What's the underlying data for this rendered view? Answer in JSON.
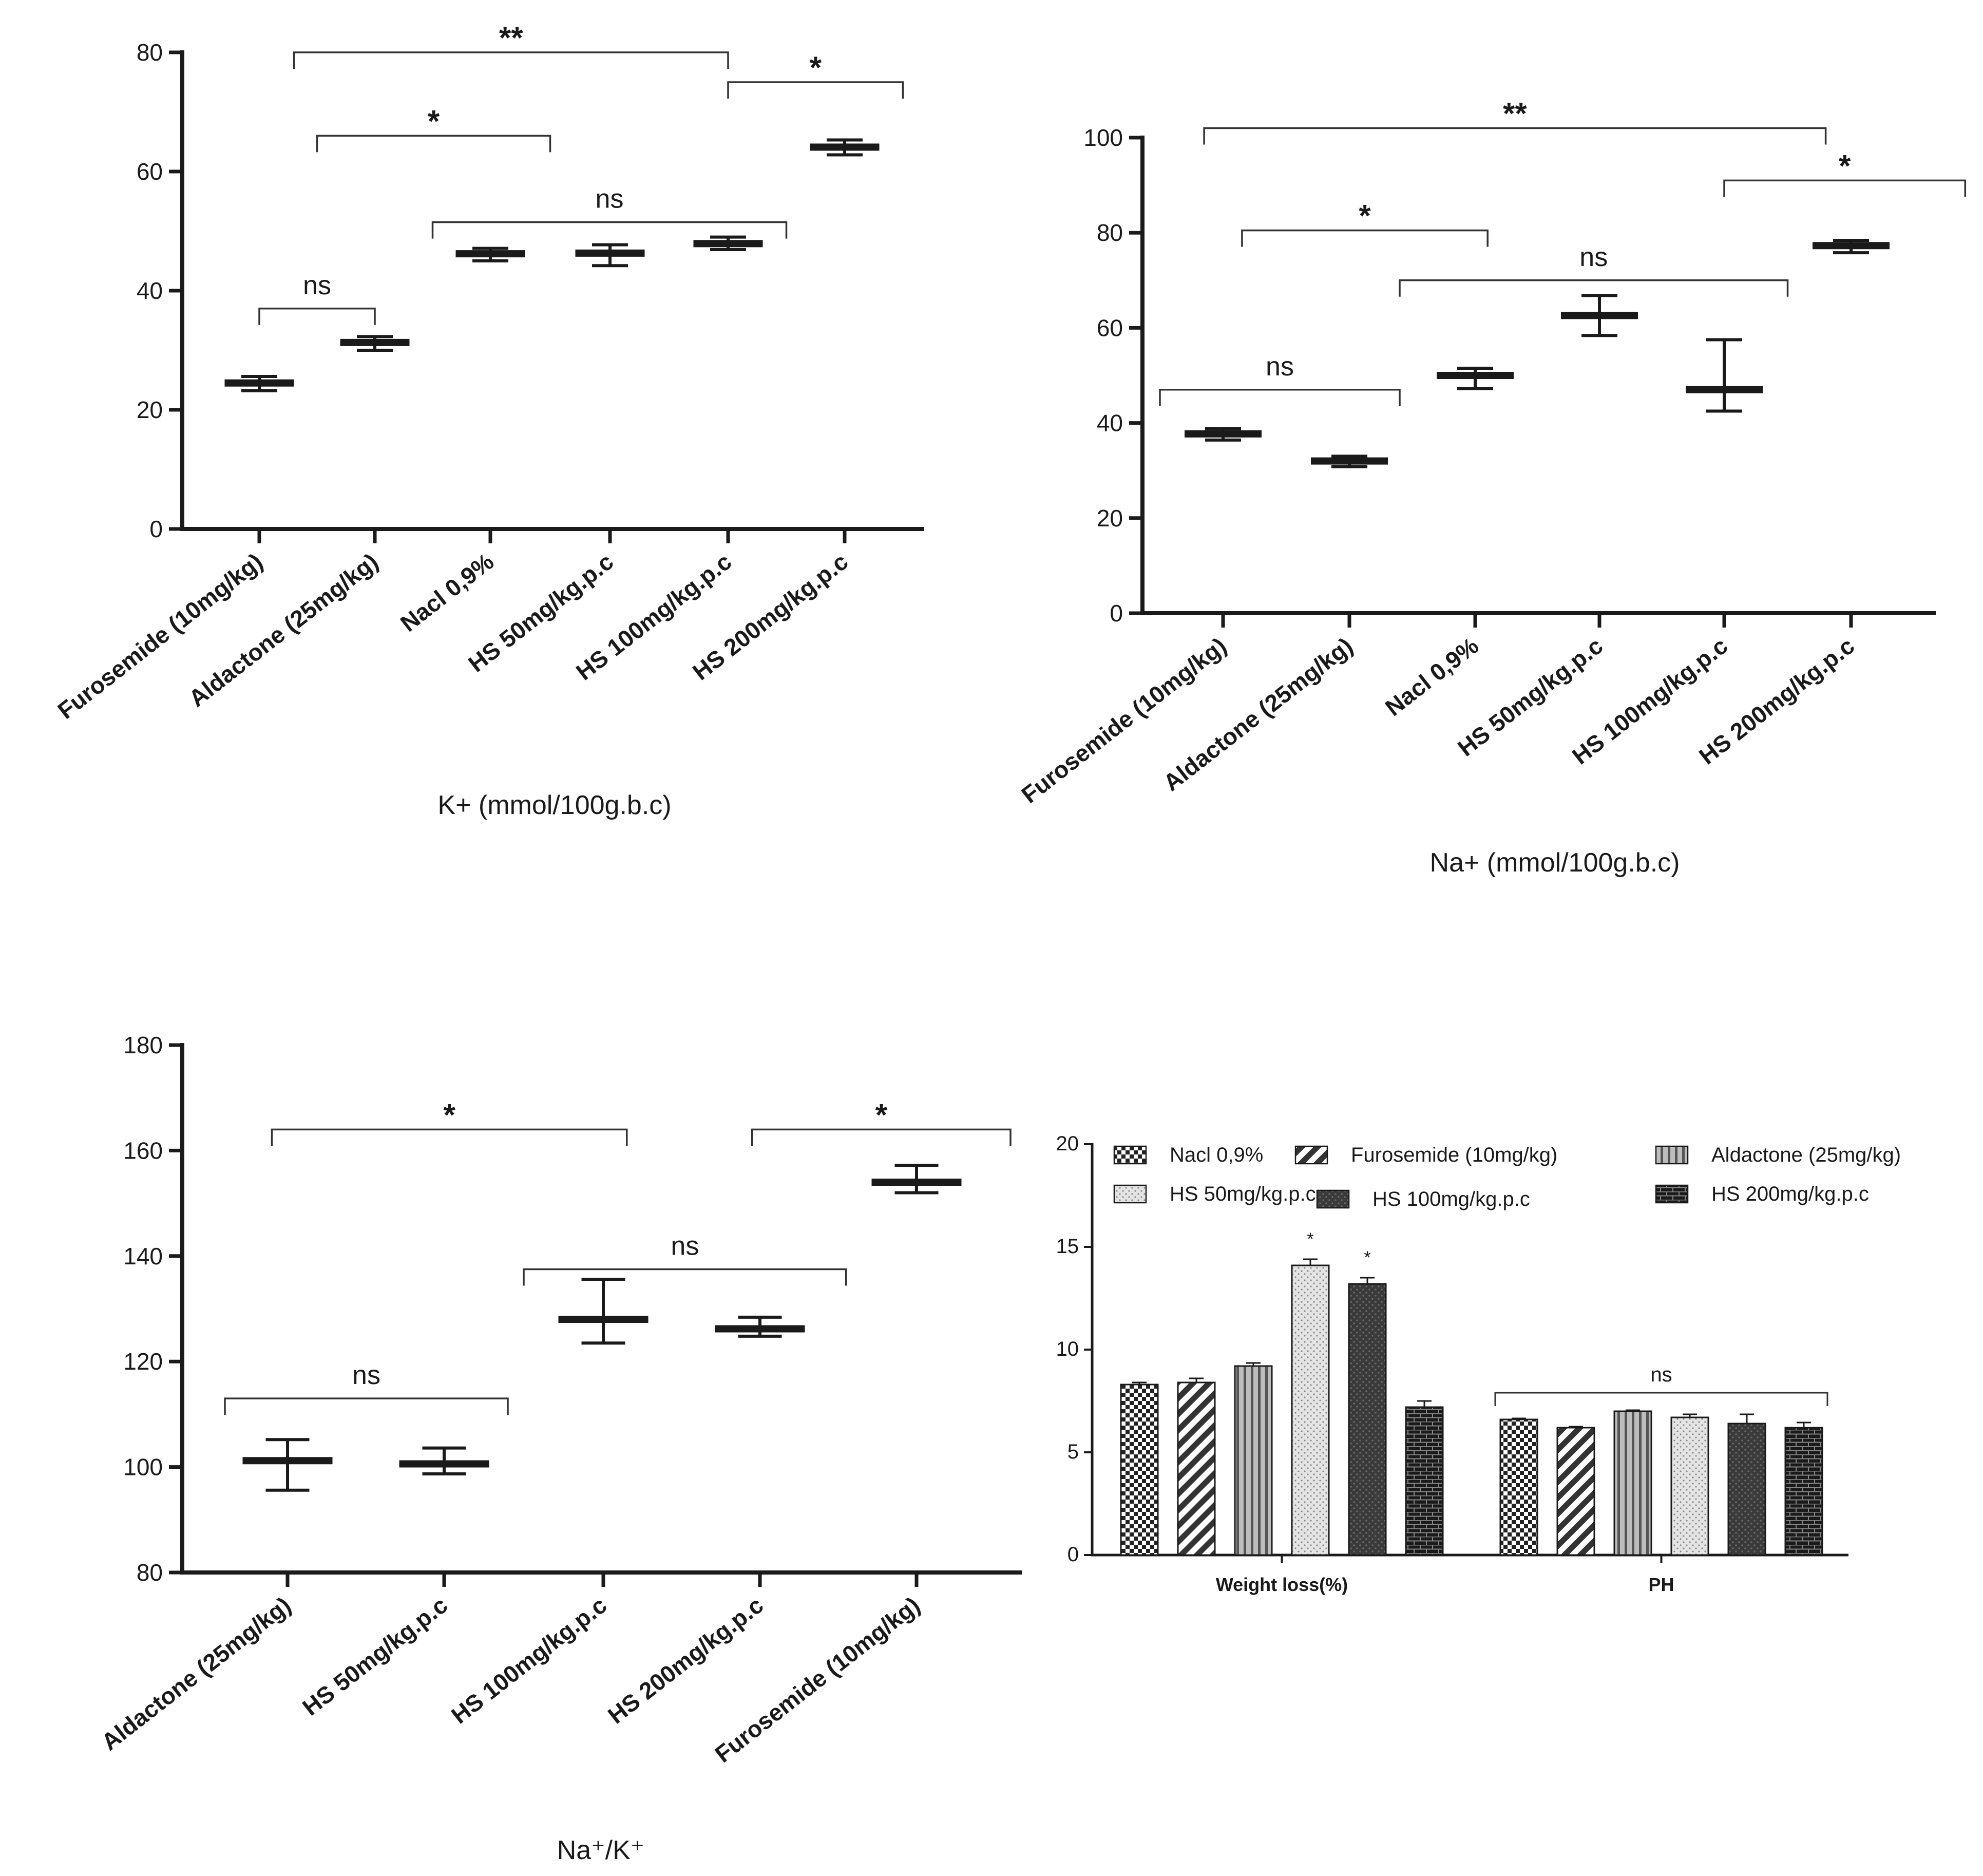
{
  "chart_data": [
    {
      "id": "k",
      "type": "scatter",
      "title": "",
      "xlabel": "K+ (mmol/100g.b.c)",
      "ylabel": "",
      "ylim": [
        0,
        80
      ],
      "yticks": [
        0,
        20,
        40,
        60,
        80
      ],
      "categories": [
        "Furosemide (10mg/kg)",
        "Aldactone (25mg/kg)",
        "Nacl 0,9%",
        "HS 50mg/kg.p.c",
        "HS 100mg/kg.p.c",
        "HS 200mg/kg.p.c"
      ],
      "series": [
        {
          "name": "K+",
          "values": [
            24.5,
            31.3,
            46.2,
            46.3,
            47.9,
            64.1
          ],
          "err_low": [
            23.2,
            30.0,
            45.0,
            44.2,
            46.9,
            62.8
          ],
          "err_high": [
            25.6,
            32.3,
            47.1,
            47.7,
            49.0,
            65.3
          ]
        }
      ],
      "brackets": [
        {
          "from": 0,
          "to": 1,
          "y": 37,
          "label": "ns"
        },
        {
          "from": 0.5,
          "to": 2.5,
          "y": 66,
          "label": "*"
        },
        {
          "from": 1.5,
          "to": 4.5,
          "y": 51.5,
          "label": "ns"
        },
        {
          "from": 0.3,
          "to": 4,
          "y": 80,
          "label": "**"
        },
        {
          "from": 4,
          "to": 5.5,
          "y": 75,
          "label": "*"
        }
      ]
    },
    {
      "id": "na",
      "type": "scatter",
      "title": "",
      "xlabel": "Na+ (mmol/100g.b.c)",
      "ylabel": "",
      "ylim": [
        0,
        100
      ],
      "yticks": [
        0,
        20,
        40,
        60,
        80,
        100
      ],
      "categories": [
        "Furosemide (10mg/kg)",
        "Aldactone (25mg/kg)",
        "Nacl 0,9%",
        "HS 50mg/kg.p.c",
        "HS 100mg/kg.p.c",
        "HS 200mg/kg.p.c"
      ],
      "series": [
        {
          "name": "Na+",
          "values": [
            37.7,
            32.0,
            50.0,
            62.6,
            47.0,
            77.3
          ],
          "err_low": [
            36.4,
            30.8,
            47.2,
            58.4,
            42.5,
            75.8
          ],
          "err_high": [
            38.8,
            33.0,
            51.5,
            66.8,
            57.5,
            78.4
          ]
        }
      ],
      "brackets": [
        {
          "from": -0.5,
          "to": 1.4,
          "y": 47,
          "label": "ns"
        },
        {
          "from": 0.15,
          "to": 2.1,
          "y": 80.5,
          "label": "*"
        },
        {
          "from": 1.4,
          "to": 4.5,
          "y": 70,
          "label": "ns"
        },
        {
          "from": -0.15,
          "to": 4.8,
          "y": 102,
          "label": "**"
        },
        {
          "from": 4,
          "to": 5.9,
          "y": 91,
          "label": "*"
        }
      ]
    },
    {
      "id": "ratio",
      "type": "scatter",
      "title": "",
      "xlabel": "Na⁺/K⁺",
      "ylabel": "",
      "ylim": [
        80,
        180
      ],
      "yticks": [
        80,
        100,
        120,
        140,
        160,
        180
      ],
      "categories": [
        "Aldactone (25mg/kg)",
        "HS 50mg/kg.p.c",
        "HS 100mg/kg.p.c",
        "HS 200mg/kg.p.c",
        "Furosemide (10mg/kg)"
      ],
      "series": [
        {
          "name": "Na+/K+",
          "values": [
            101.2,
            100.6,
            128.0,
            126.2,
            154.0
          ],
          "err_low": [
            95.6,
            98.7,
            123.5,
            124.8,
            152.0
          ],
          "err_high": [
            105.2,
            103.6,
            135.6,
            128.4,
            157.2
          ]
        }
      ],
      "brackets": [
        {
          "from": -0.4,
          "to": 1.4,
          "y": 113,
          "label": "ns"
        },
        {
          "from": 1.5,
          "to": 3.55,
          "y": 137.5,
          "label": "ns"
        },
        {
          "from": -0.1,
          "to": 2.15,
          "y": 164,
          "label": "*"
        },
        {
          "from": 2.95,
          "to": 4.6,
          "y": 164,
          "label": "*"
        }
      ]
    },
    {
      "id": "bars",
      "type": "bar",
      "title": "",
      "xlabel": "",
      "ylabel": "",
      "ylim": [
        0,
        20
      ],
      "yticks": [
        0,
        5,
        10,
        15,
        20
      ],
      "categories": [
        "Weight loss(%)",
        "PH"
      ],
      "series": [
        {
          "name": "Nacl 0,9%",
          "values": [
            8.3,
            6.6
          ],
          "err": [
            0.1,
            0.05
          ],
          "pattern": "checker"
        },
        {
          "name": "Furosemide (10mg/kg)",
          "values": [
            8.4,
            6.2
          ],
          "err": [
            0.2,
            0.05
          ],
          "pattern": "diag"
        },
        {
          "name": "Aldactone (25mg/kg)",
          "values": [
            9.2,
            7.0
          ],
          "err": [
            0.15,
            0.05
          ],
          "pattern": "vert"
        },
        {
          "name": "HS 50mg/kg.p.c",
          "values": [
            14.1,
            6.7
          ],
          "err": [
            0.3,
            0.15
          ],
          "pattern": "dots"
        },
        {
          "name": "HS 100mg/kg.p.c",
          "values": [
            13.2,
            6.4
          ],
          "err": [
            0.3,
            0.45
          ],
          "pattern": "dark"
        },
        {
          "name": "HS 200mg/kg.p.c",
          "values": [
            7.2,
            6.2
          ],
          "err": [
            0.3,
            0.25
          ],
          "pattern": "brick"
        }
      ],
      "significance": [
        {
          "group": 0,
          "series": 3,
          "label": "*"
        },
        {
          "group": 0,
          "series": 4,
          "label": "*"
        }
      ],
      "ph_bracket": {
        "y": 7.9,
        "label": "ns"
      }
    }
  ]
}
